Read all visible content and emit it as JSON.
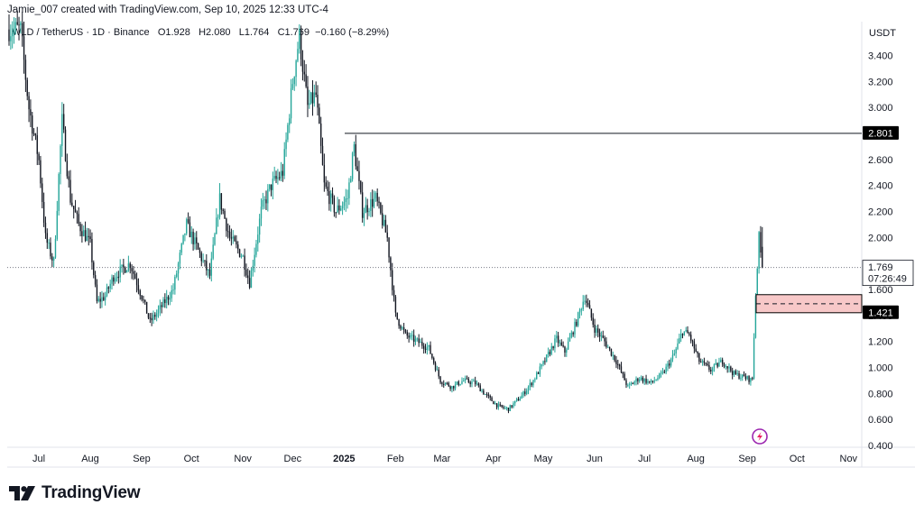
{
  "header": {
    "text": "Jamie_007 created with TradingView.com, Sep 10, 2025 12:33 UTC-4"
  },
  "legend": {
    "symbol": "WLD / TetherUS · 1D · Binance",
    "open": "O1.928",
    "high": "H2.080",
    "low": "L1.764",
    "close": "C1.769",
    "change": "−0.160 (−8.29%)"
  },
  "price_axis": {
    "currency": "USDT",
    "ticks": [
      "3.400",
      "3.200",
      "3.000",
      "2.800",
      "2.600",
      "2.400",
      "2.200",
      "2.000",
      "1.800",
      "1.600",
      "1.400",
      "1.200",
      "1.000",
      "0.800",
      "0.600",
      "0.400"
    ]
  },
  "badges": {
    "resistance": "2.801",
    "last_price": "1.769",
    "countdown": "07:26:49",
    "support": "1.421"
  },
  "footer": {
    "brand": "TradingView"
  },
  "colors": {
    "up": "#26a69a",
    "down": "#131722",
    "zone": "#f7c8c8",
    "zone_border": "#000000"
  },
  "chart_data": {
    "type": "candlestick",
    "x_labels": [
      "Jul",
      "Aug",
      "Sep",
      "Oct",
      "Nov",
      "Dec",
      "2025",
      "Feb",
      "Mar",
      "Apr",
      "May",
      "Jun",
      "Jul",
      "Aug",
      "Sep",
      "Oct",
      "Nov"
    ],
    "ylim": [
      0.4,
      3.6
    ],
    "horizontal_lines": [
      {
        "value": 2.801,
        "label": "2.801"
      },
      {
        "value": 1.769,
        "label": "1.769",
        "style": "dotted"
      }
    ],
    "zone": {
      "top": 1.56,
      "bottom": 1.421,
      "mid": 1.49
    },
    "price_path": [
      [
        "2024-06-20",
        3.6
      ],
      [
        "2024-06-25",
        3.0
      ],
      [
        "2024-07-01",
        2.6
      ],
      [
        "2024-07-05",
        2.0
      ],
      [
        "2024-07-10",
        1.8
      ],
      [
        "2024-07-15",
        2.9
      ],
      [
        "2024-07-20",
        2.3
      ],
      [
        "2024-07-25",
        2.1
      ],
      [
        "2024-08-01",
        1.95
      ],
      [
        "2024-08-05",
        1.5
      ],
      [
        "2024-08-10",
        1.55
      ],
      [
        "2024-08-15",
        1.7
      ],
      [
        "2024-08-20",
        1.75
      ],
      [
        "2024-08-25",
        1.8
      ],
      [
        "2024-09-01",
        1.55
      ],
      [
        "2024-09-06",
        1.35
      ],
      [
        "2024-09-12",
        1.45
      ],
      [
        "2024-09-20",
        1.6
      ],
      [
        "2024-09-28",
        2.1
      ],
      [
        "2024-10-05",
        1.9
      ],
      [
        "2024-10-12",
        1.7
      ],
      [
        "2024-10-18",
        2.3
      ],
      [
        "2024-10-24",
        2.0
      ],
      [
        "2024-11-01",
        1.85
      ],
      [
        "2024-11-05",
        1.65
      ],
      [
        "2024-11-12",
        2.2
      ],
      [
        "2024-11-18",
        2.4
      ],
      [
        "2024-11-25",
        2.5
      ],
      [
        "2024-12-01",
        3.2
      ],
      [
        "2024-12-05",
        3.55
      ],
      [
        "2024-12-10",
        3.0
      ],
      [
        "2024-12-15",
        3.1
      ],
      [
        "2024-12-20",
        2.4
      ],
      [
        "2024-12-27",
        2.2
      ],
      [
        "2025-01-03",
        2.3
      ],
      [
        "2025-01-07",
        2.7
      ],
      [
        "2025-01-12",
        2.2
      ],
      [
        "2025-01-20",
        2.3
      ],
      [
        "2025-01-27",
        2.0
      ],
      [
        "2025-02-01",
        1.4
      ],
      [
        "2025-02-07",
        1.25
      ],
      [
        "2025-02-14",
        1.2
      ],
      [
        "2025-02-21",
        1.15
      ],
      [
        "2025-02-28",
        0.9
      ],
      [
        "2025-03-07",
        0.85
      ],
      [
        "2025-03-14",
        0.9
      ],
      [
        "2025-03-21",
        0.88
      ],
      [
        "2025-03-28",
        0.78
      ],
      [
        "2025-04-04",
        0.7
      ],
      [
        "2025-04-10",
        0.68
      ],
      [
        "2025-04-18",
        0.78
      ],
      [
        "2025-04-25",
        0.9
      ],
      [
        "2025-05-02",
        1.05
      ],
      [
        "2025-05-09",
        1.22
      ],
      [
        "2025-05-14",
        1.12
      ],
      [
        "2025-05-21",
        1.35
      ],
      [
        "2025-05-26",
        1.55
      ],
      [
        "2025-06-01",
        1.3
      ],
      [
        "2025-06-07",
        1.2
      ],
      [
        "2025-06-14",
        1.05
      ],
      [
        "2025-06-21",
        0.85
      ],
      [
        "2025-06-28",
        0.92
      ],
      [
        "2025-07-05",
        0.88
      ],
      [
        "2025-07-12",
        0.95
      ],
      [
        "2025-07-19",
        1.1
      ],
      [
        "2025-07-24",
        1.28
      ],
      [
        "2025-07-28",
        1.25
      ],
      [
        "2025-08-03",
        1.05
      ],
      [
        "2025-08-10",
        0.98
      ],
      [
        "2025-08-17",
        1.05
      ],
      [
        "2025-08-24",
        0.95
      ],
      [
        "2025-08-31",
        0.92
      ],
      [
        "2025-09-04",
        0.9
      ],
      [
        "2025-09-06",
        1.55
      ],
      [
        "2025-09-08",
        2.0
      ],
      [
        "2025-09-10",
        1.769
      ]
    ]
  }
}
